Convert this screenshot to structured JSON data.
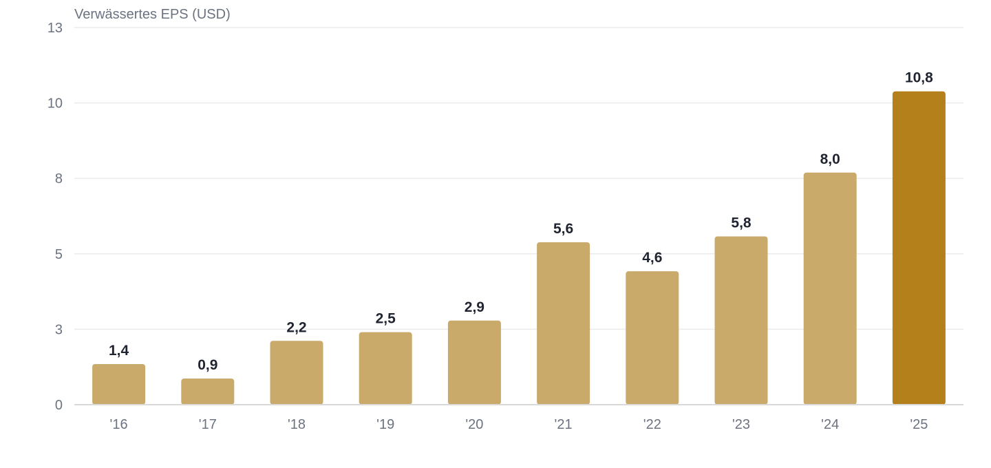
{
  "chart_data": {
    "type": "bar",
    "ylabel": "Verwässertes EPS (USD)",
    "categories": [
      "'16",
      "'17",
      "'18",
      "'19",
      "'20",
      "'21",
      "'22",
      "'23",
      "'24",
      "'25"
    ],
    "values": [
      1.4,
      0.9,
      2.2,
      2.5,
      2.9,
      5.6,
      4.6,
      5.8,
      8.0,
      10.8
    ],
    "value_labels": [
      "1,4",
      "0,9",
      "2,2",
      "2,5",
      "2,9",
      "5,6",
      "4,6",
      "5,8",
      "8,0",
      "10,8"
    ],
    "ylim": [
      0,
      13
    ],
    "yticks": [
      0,
      2.6,
      5.2,
      7.8,
      10.4,
      13
    ],
    "ytick_labels": [
      "0",
      "3",
      "5",
      "8",
      "10",
      "13"
    ],
    "grid": true,
    "colors": {
      "bar": "#c9aa6a",
      "highlight_bar": "#b4801c",
      "grid": "#ebebeb",
      "axis_text": "#6b7280",
      "value_text": "#1f2430"
    },
    "highlight_index": 9
  }
}
